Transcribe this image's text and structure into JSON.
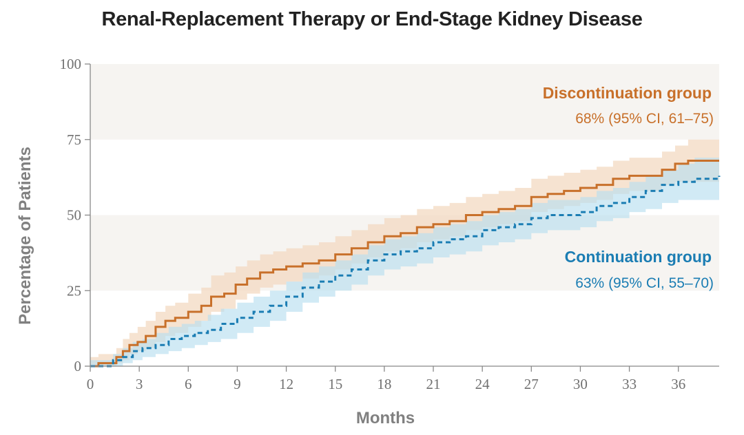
{
  "chart_data": {
    "type": "line",
    "title": "Renal-Replacement Therapy or End-Stage Kidney Disease",
    "xlabel": "Months",
    "ylabel": "Percentage of Patients",
    "xlim": [
      0,
      38.5
    ],
    "ylim": [
      0,
      100
    ],
    "xticks": [
      0,
      3,
      6,
      9,
      12,
      15,
      18,
      21,
      24,
      27,
      30,
      33,
      36
    ],
    "yticks": [
      0,
      25,
      50,
      75,
      100
    ],
    "grid": "alternating horizontal bands",
    "colors": {
      "discontinuation": "#c8702a",
      "continuation": "#1b7db3",
      "discontinuation_band": "#f3d9c2",
      "continuation_band": "#b9dff0"
    },
    "series": [
      {
        "name": "Discontinuation group",
        "annotation": "68% (95% CI, 61–75)",
        "line_style": "solid",
        "x": [
          0,
          0.5,
          1.2,
          1.6,
          2.0,
          2.4,
          2.9,
          3.4,
          4.0,
          4.6,
          5.2,
          6.0,
          6.8,
          7.4,
          8.2,
          8.9,
          9.6,
          10.4,
          11.2,
          12.0,
          13.0,
          14.0,
          15.0,
          16.0,
          17.0,
          18.0,
          19.0,
          20.0,
          21.0,
          22.0,
          23.0,
          24.0,
          25.0,
          26.0,
          27.0,
          28.0,
          29.0,
          30.0,
          31.0,
          32.0,
          33.0,
          34.0,
          35.0,
          35.8,
          36.6,
          38.5
        ],
        "y": [
          0,
          1,
          1,
          3,
          5,
          7,
          8,
          10,
          13,
          15,
          16,
          18,
          20,
          23,
          24,
          27,
          29,
          31,
          32,
          33,
          34,
          35,
          37,
          39,
          41,
          43,
          44,
          46,
          47,
          48,
          50,
          51,
          52,
          53,
          56,
          57,
          58,
          59,
          60,
          62,
          63,
          63,
          65,
          67,
          68,
          68
        ],
        "ci_lower": [
          0,
          0,
          0,
          1,
          2,
          4,
          5,
          6,
          8,
          10,
          11,
          13,
          15,
          18,
          19,
          22,
          24,
          26,
          27,
          28,
          29,
          30,
          32,
          34,
          36,
          38,
          39,
          41,
          42,
          43,
          45,
          46,
          47,
          48,
          51,
          52,
          53,
          54,
          55,
          57,
          58,
          58,
          60,
          61,
          61,
          61
        ],
        "ci_upper": [
          3,
          4,
          4,
          6,
          9,
          11,
          13,
          15,
          18,
          20,
          21,
          24,
          26,
          30,
          31,
          33,
          35,
          37,
          38,
          39,
          40,
          41,
          43,
          45,
          47,
          49,
          50,
          52,
          53,
          54,
          56,
          57,
          58,
          59,
          62,
          63,
          64,
          65,
          66,
          68,
          69,
          69,
          71,
          73,
          75,
          75
        ]
      },
      {
        "name": "Continuation group",
        "annotation": "63% (95% CI, 55–70)",
        "line_style": "dashed",
        "x": [
          0,
          0.8,
          1.4,
          2.0,
          2.6,
          3.2,
          4.0,
          4.8,
          5.6,
          6.4,
          7.2,
          8.0,
          9.0,
          10.0,
          11.0,
          12.0,
          13.0,
          14.0,
          15.0,
          16.0,
          17.0,
          18.0,
          19.0,
          20.0,
          21.0,
          22.0,
          23.0,
          24.0,
          25.0,
          26.0,
          27.0,
          28.0,
          29.0,
          30.0,
          31.0,
          32.0,
          33.0,
          34.0,
          35.0,
          36.0,
          37.0,
          38.5
        ],
        "y": [
          0,
          0,
          2,
          3,
          5,
          6,
          7,
          9,
          10,
          11,
          12,
          14,
          16,
          18,
          20,
          23,
          26,
          28,
          30,
          32,
          35,
          37,
          38,
          39,
          41,
          42,
          43,
          45,
          46,
          47,
          49,
          50,
          50,
          51,
          53,
          54,
          56,
          58,
          60,
          61,
          62,
          63
        ],
        "ci_lower": [
          0,
          0,
          0,
          1,
          2,
          3,
          4,
          5,
          6,
          7,
          8,
          9,
          11,
          13,
          15,
          18,
          21,
          23,
          25,
          27,
          30,
          32,
          33,
          34,
          36,
          37,
          38,
          40,
          41,
          42,
          44,
          45,
          45,
          46,
          48,
          49,
          51,
          52,
          54,
          55,
          55,
          55
        ],
        "ci_upper": [
          2,
          2,
          4,
          6,
          8,
          9,
          11,
          13,
          14,
          15,
          17,
          19,
          21,
          23,
          25,
          28,
          31,
          33,
          35,
          37,
          40,
          42,
          43,
          44,
          46,
          47,
          48,
          50,
          51,
          52,
          54,
          55,
          55,
          56,
          58,
          59,
          61,
          63,
          65,
          67,
          69,
          70
        ]
      }
    ]
  }
}
